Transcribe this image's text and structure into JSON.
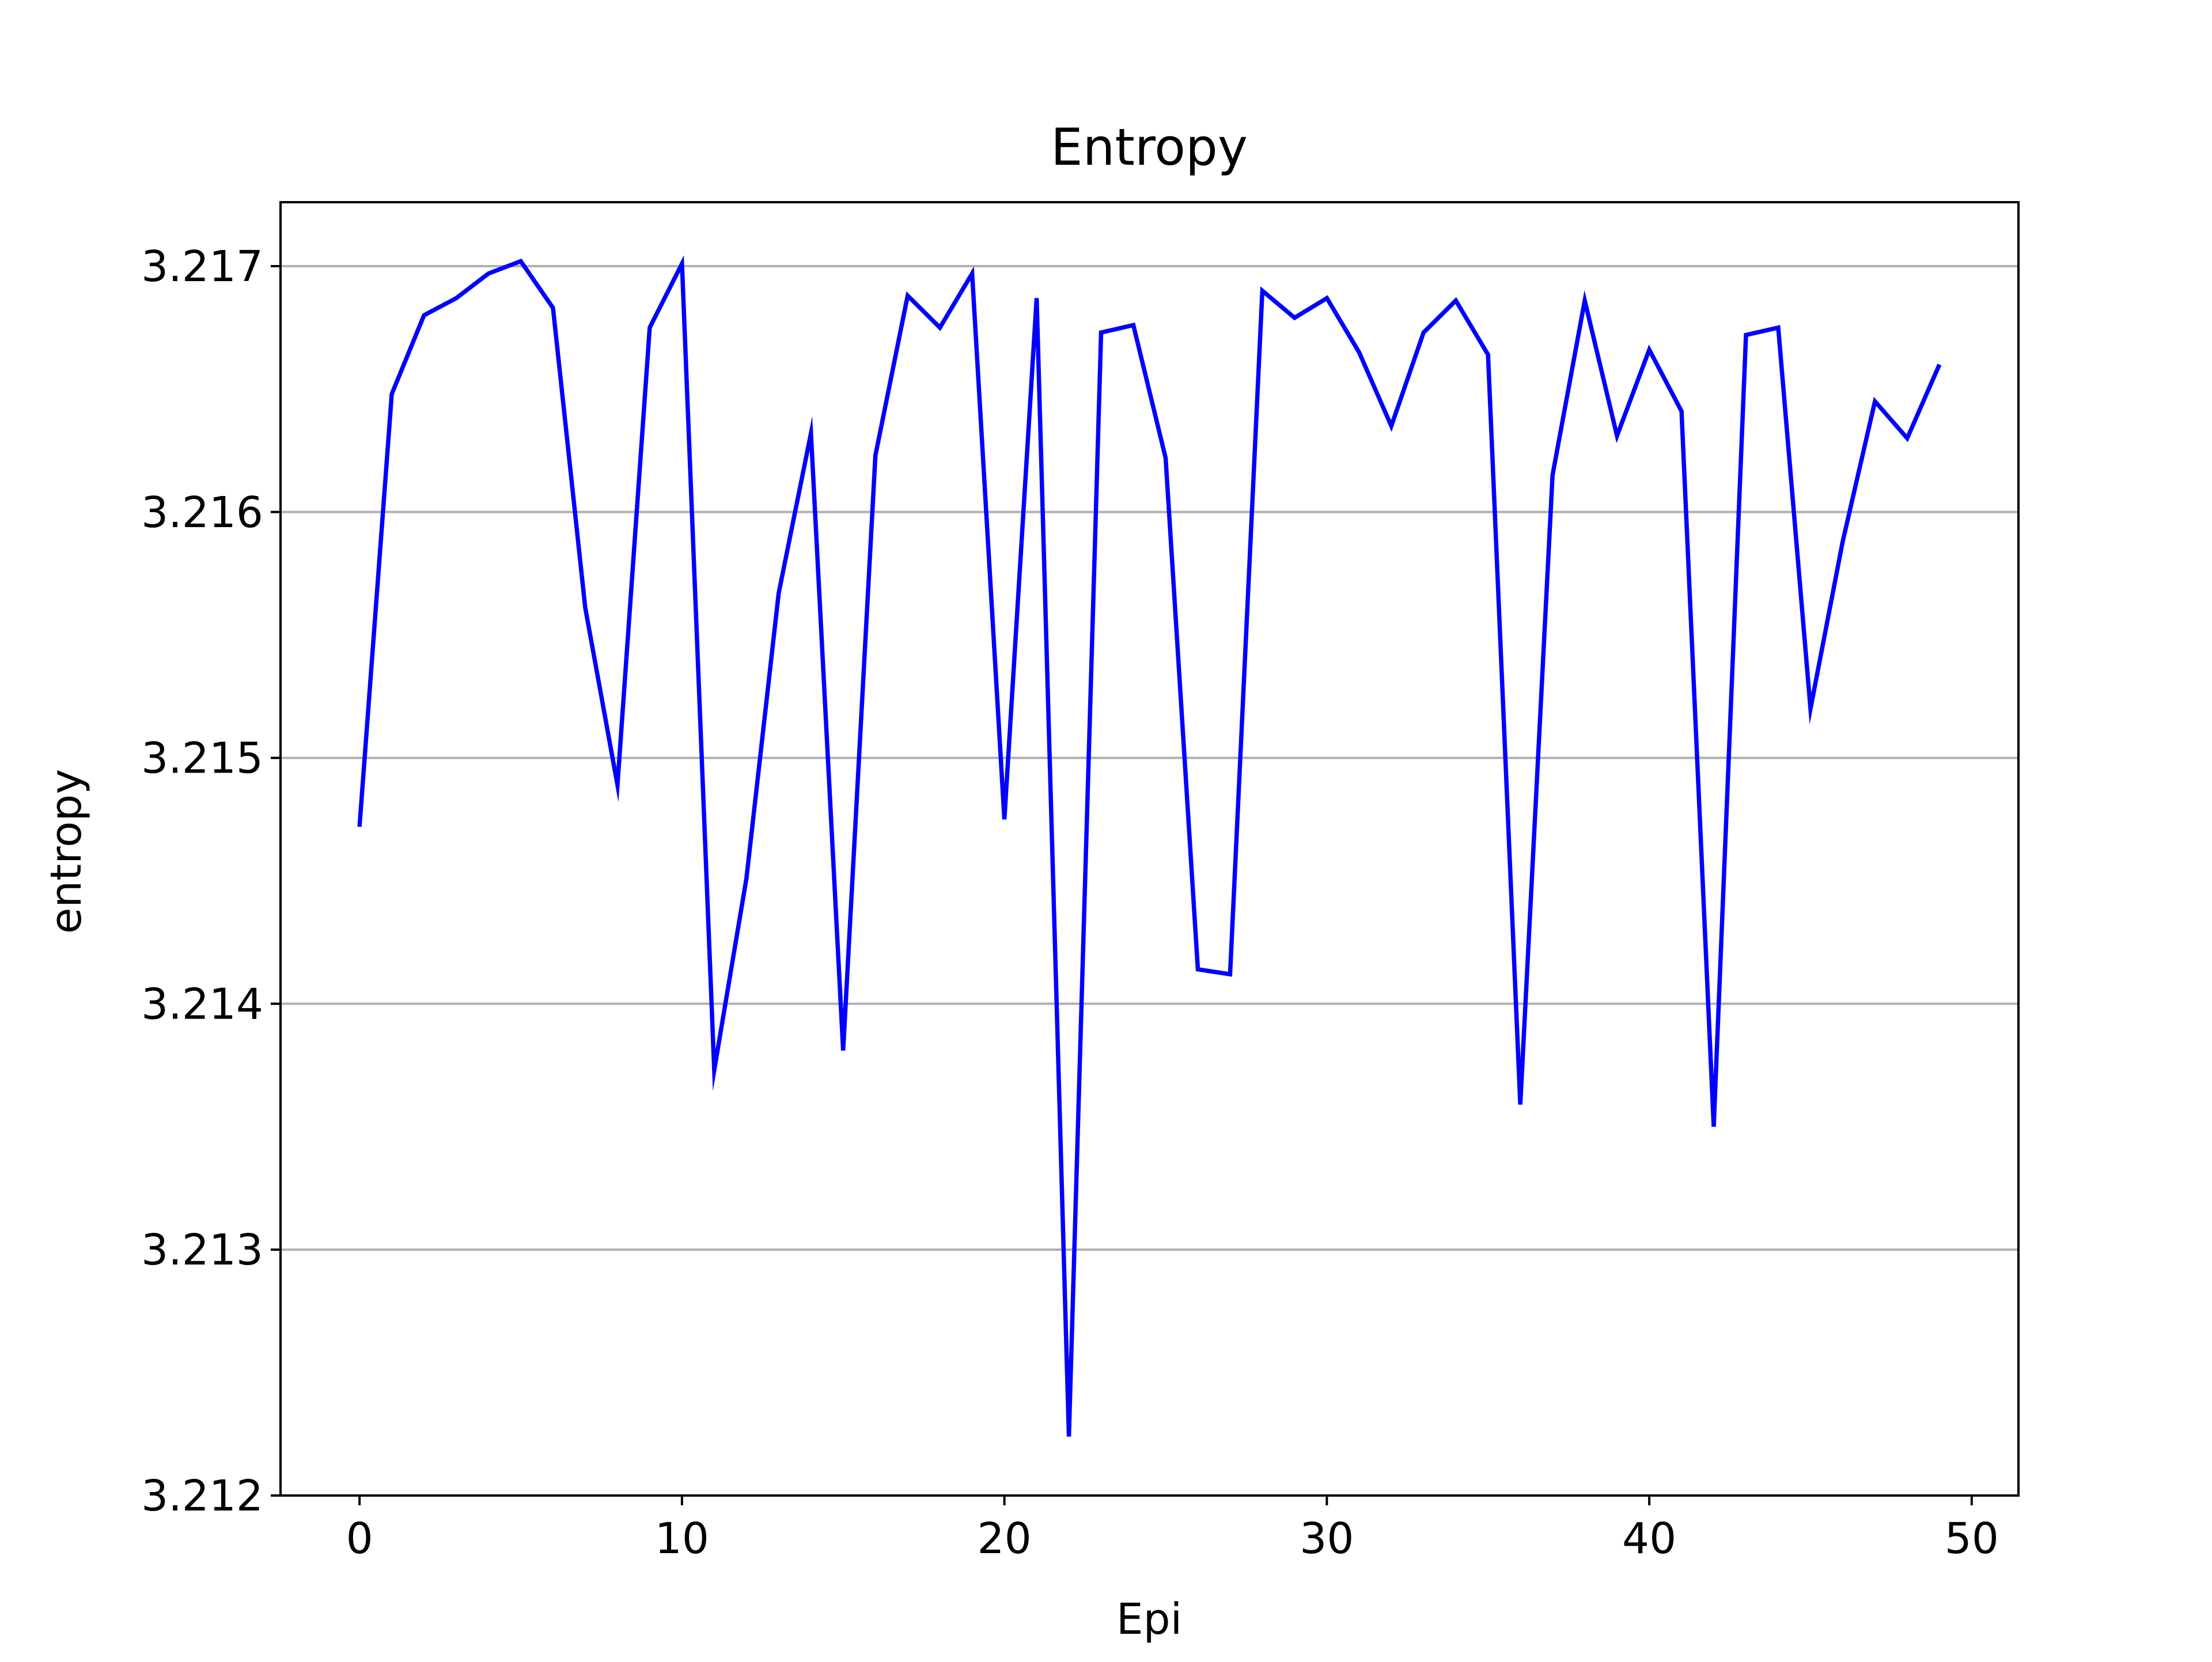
{
  "chart_data": {
    "type": "line",
    "title": "Entropy",
    "xlabel": "Epi",
    "ylabel": "entropy",
    "xlim": [
      -2.45,
      51.45
    ],
    "ylim": [
      3.212,
      3.21726
    ],
    "xticks": [
      0,
      10,
      20,
      30,
      40,
      50
    ],
    "xtick_labels": [
      "0",
      "10",
      "20",
      "30",
      "40",
      "50"
    ],
    "yticks": [
      3.212,
      3.213,
      3.214,
      3.215,
      3.216,
      3.217
    ],
    "ytick_labels": [
      "3.212",
      "3.213",
      "3.214",
      "3.215",
      "3.216",
      "3.217"
    ],
    "grid": "y-axis major",
    "series": [
      {
        "color": "#0000ff",
        "x": [
          0,
          1,
          2,
          3,
          4,
          5,
          6,
          7,
          8,
          9,
          10,
          11,
          12,
          13,
          14,
          15,
          16,
          17,
          18,
          19,
          20,
          21,
          22,
          23,
          24,
          25,
          26,
          27,
          28,
          29,
          30,
          31,
          32,
          33,
          34,
          35,
          36,
          37,
          38,
          39,
          40,
          41,
          42,
          43,
          44,
          45,
          46,
          47,
          48,
          49
        ],
        "values": [
          3.21472,
          3.21648,
          3.2168,
          3.21687,
          3.21697,
          3.21702,
          3.21683,
          3.21561,
          3.21489,
          3.21675,
          3.21701,
          3.21373,
          3.21451,
          3.21567,
          3.21632,
          3.21381,
          3.21623,
          3.21688,
          3.21675,
          3.21697,
          3.21475,
          3.21687,
          3.21224,
          3.21673,
          3.21676,
          3.21622,
          3.21414,
          3.21412,
          3.2169,
          3.21679,
          3.21687,
          3.21665,
          3.21635,
          3.21673,
          3.21686,
          3.21664,
          3.21359,
          3.21615,
          3.21686,
          3.21631,
          3.21666,
          3.21641,
          3.2135,
          3.21672,
          3.21675,
          3.2152,
          3.21588,
          3.21645,
          3.2163,
          3.2166
        ]
      }
    ]
  },
  "colors": {
    "line": "#0000ff",
    "grid": "#b0b0b0",
    "axes": "#000000"
  }
}
